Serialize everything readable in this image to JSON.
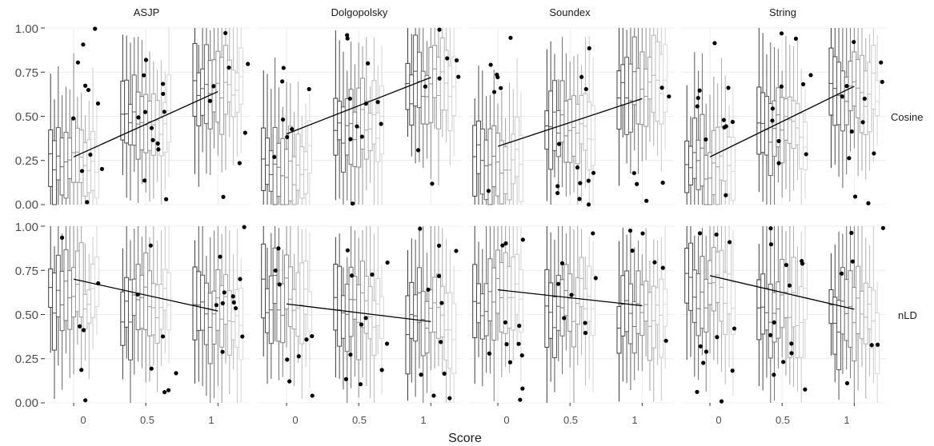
{
  "chart_data": {
    "type": "boxplot",
    "xlabel": "Score",
    "ylabel": "",
    "columns": [
      "ASJP",
      "Dolgopolsky",
      "Soundex",
      "String"
    ],
    "rows": [
      "Cosine",
      "nLD"
    ],
    "x_ticks": [
      {
        "value": 0,
        "label": "0"
      },
      {
        "value": 0.5,
        "label": "0.5"
      },
      {
        "value": 1,
        "label": "1"
      }
    ],
    "y_ticks": [
      "0.00",
      "0.25",
      "0.50",
      "0.75",
      "1.00"
    ],
    "ylim": [
      0,
      1
    ],
    "xlim": [
      -0.2,
      1.22
    ],
    "grid": true,
    "box_groups_x": [
      0,
      0.5,
      1
    ],
    "trend_lines": [
      {
        "column": "ASJP",
        "row": "Cosine",
        "x": [
          0,
          1
        ],
        "y": [
          0.27,
          0.64
        ]
      },
      {
        "column": "Dolgopolsky",
        "row": "Cosine",
        "x": [
          0,
          1
        ],
        "y": [
          0.4,
          0.72
        ]
      },
      {
        "column": "Soundex",
        "row": "Cosine",
        "x": [
          0,
          1
        ],
        "y": [
          0.33,
          0.6
        ]
      },
      {
        "column": "String",
        "row": "Cosine",
        "x": [
          0,
          1
        ],
        "y": [
          0.27,
          0.67
        ]
      },
      {
        "column": "ASJP",
        "row": "nLD",
        "x": [
          0,
          1
        ],
        "y": [
          0.7,
          0.52
        ]
      },
      {
        "column": "Dolgopolsky",
        "row": "nLD",
        "x": [
          0,
          1
        ],
        "y": [
          0.56,
          0.46
        ]
      },
      {
        "column": "Soundex",
        "row": "nLD",
        "x": [
          0,
          1
        ],
        "y": [
          0.64,
          0.55
        ]
      },
      {
        "column": "String",
        "row": "nLD",
        "x": [
          0,
          1
        ],
        "y": [
          0.72,
          0.53
        ]
      }
    ],
    "colors": {
      "box_dark": "#3a3a3a",
      "box_light": "#d6d6d6",
      "outlier": "#000000",
      "trend": "#000000",
      "grid": "#ececec"
    }
  }
}
